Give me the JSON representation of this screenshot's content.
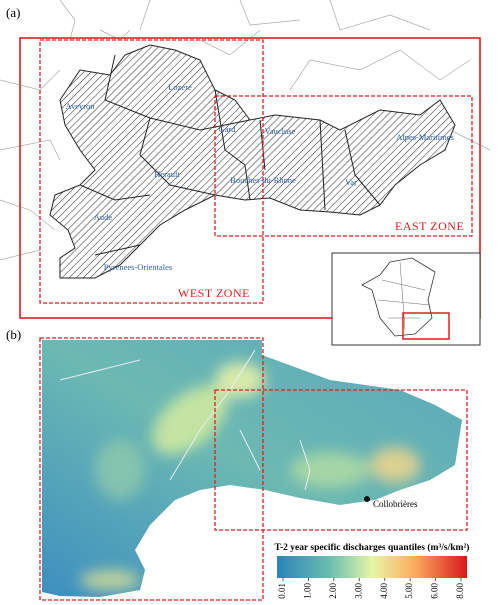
{
  "panel_a": {
    "label": "(a)",
    "departments": [
      "Aveyron",
      "Lozere",
      "Gard",
      "Vaucluse",
      "Alpes-Maritimes",
      "Herault",
      "Bouches-du-Rhone",
      "Var",
      "Aude",
      "Pyrenees-Orientales"
    ],
    "zones": [
      "WEST ZONE",
      "EAST ZONE"
    ]
  },
  "panel_b": {
    "label": "(b)",
    "station": "Collobrières",
    "colorbar": {
      "title": "T-2 year specific discharges quantiles (m³/s/km²)",
      "ticks": [
        {
          "value": 0.01,
          "label": "0.01"
        },
        {
          "value": 1,
          "label": "1.00"
        },
        {
          "value": 2,
          "label": "2.00"
        },
        {
          "value": 3,
          "label": "3.00"
        },
        {
          "value": 4,
          "label": "4.00"
        },
        {
          "value": 5,
          "label": "5.00"
        },
        {
          "value": 6,
          "label": "6.00"
        },
        {
          "value": 8,
          "label": "8.00"
        }
      ]
    }
  }
}
